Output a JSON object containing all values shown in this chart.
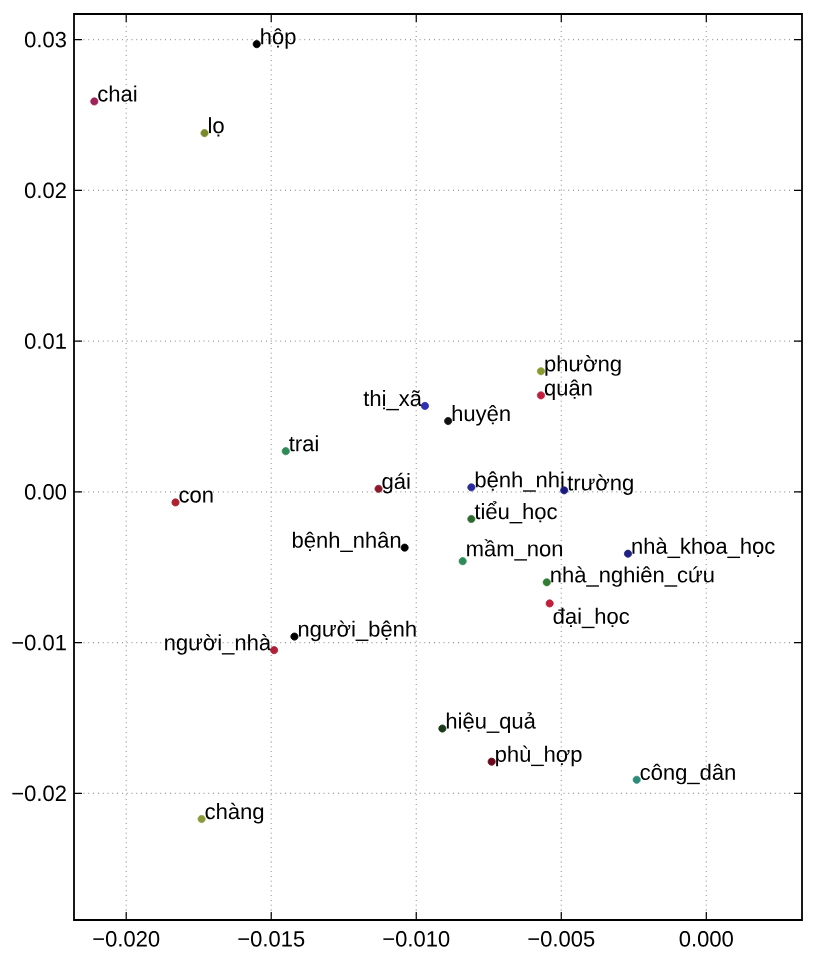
{
  "chart_data": {
    "type": "scatter",
    "marker": "circle",
    "grid": true,
    "x": [
      -0.0155,
      -0.0211,
      -0.0173,
      -0.0145,
      -0.0183,
      -0.0113,
      -0.0097,
      -0.0089,
      -0.0057,
      -0.0057,
      -0.0081,
      -0.0049,
      -0.0081,
      -0.0104,
      -0.0084,
      -0.0027,
      -0.0055,
      -0.0054,
      -0.0142,
      -0.0149,
      -0.0091,
      -0.0074,
      -0.0024,
      -0.0174
    ],
    "values": [
      0.0297,
      0.0259,
      0.0238,
      0.0027,
      -0.0007,
      0.0002,
      0.0057,
      0.0047,
      0.008,
      0.0064,
      0.0003,
      0.0001,
      -0.0018,
      -0.0037,
      -0.0046,
      -0.0041,
      -0.006,
      -0.0074,
      -0.0096,
      -0.0105,
      -0.0157,
      -0.0179,
      -0.0191,
      -0.0217
    ],
    "colors": [
      "#000000",
      "#a0205a",
      "#7a8a2a",
      "#2e8b57",
      "#b02030",
      "#8b1a2a",
      "#3030b0",
      "#101010",
      "#8a9a30",
      "#c02040",
      "#2a2a9a",
      "#1a1a80",
      "#2e6b2e",
      "#000000",
      "#2e8b57",
      "#202080",
      "#2e7d32",
      "#c0203a",
      "#000000",
      "#b0203a",
      "#1a3a1a",
      "#6a0a1a",
      "#2e8b7a",
      "#8a9a3a"
    ],
    "annotations": [
      {
        "text": "hộp",
        "x": -0.0155,
        "y": 0.0297
      },
      {
        "text": "chai",
        "x": -0.0211,
        "y": 0.0259
      },
      {
        "text": "lọ",
        "x": -0.0173,
        "y": 0.0238
      },
      {
        "text": "trai",
        "x": -0.0145,
        "y": 0.0027
      },
      {
        "text": "con",
        "x": -0.0183,
        "y": -0.0007
      },
      {
        "text": "gái",
        "x": -0.0113,
        "y": 0.0002
      },
      {
        "text": "thị_xã",
        "x": -0.0097,
        "y": 0.0057
      },
      {
        "text": "huyện",
        "x": -0.0089,
        "y": 0.0047
      },
      {
        "text": "phường",
        "x": -0.0057,
        "y": 0.008
      },
      {
        "text": "quận",
        "x": -0.0057,
        "y": 0.0064
      },
      {
        "text": "bệnh_nhi",
        "x": -0.0081,
        "y": 0.0003
      },
      {
        "text": "trường",
        "x": -0.0049,
        "y": 0.0001
      },
      {
        "text": "tiểu_học",
        "x": -0.0081,
        "y": -0.0018
      },
      {
        "text": "bệnh_nhân",
        "x": -0.0104,
        "y": -0.0037
      },
      {
        "text": "mầm_non",
        "x": -0.0084,
        "y": -0.0046
      },
      {
        "text": "nhà_khoa_học",
        "x": -0.0027,
        "y": -0.0041
      },
      {
        "text": "nhà_nghiên_cứu",
        "x": -0.0055,
        "y": -0.006
      },
      {
        "text": "đại_học",
        "x": -0.0054,
        "y": -0.0074
      },
      {
        "text": "người_bệnh",
        "x": -0.0142,
        "y": -0.0096
      },
      {
        "text": "người_nhà",
        "x": -0.0149,
        "y": -0.0105
      },
      {
        "text": "hiệu_quả",
        "x": -0.0091,
        "y": -0.0157
      },
      {
        "text": "phù_hợp",
        "x": -0.0074,
        "y": -0.0179
      },
      {
        "text": "công_dân",
        "x": -0.0024,
        "y": -0.0191
      },
      {
        "text": "chàng",
        "x": -0.0174,
        "y": -0.0217
      }
    ],
    "xlim": [
      -0.0218,
      0.0033
    ],
    "ylim": [
      -0.0284,
      0.0317
    ],
    "xticks": [
      {
        "value": -0.02,
        "label": "−0.020"
      },
      {
        "value": -0.015,
        "label": "−0.015"
      },
      {
        "value": -0.01,
        "label": "−0.010"
      },
      {
        "value": -0.005,
        "label": "−0.005"
      },
      {
        "value": 0,
        "label": "0.000"
      }
    ],
    "yticks": [
      {
        "value": -0.02,
        "label": "−0.02"
      },
      {
        "value": -0.01,
        "label": "−0.01"
      },
      {
        "value": 0,
        "label": "0.00"
      },
      {
        "value": 0.01,
        "label": "0.01"
      },
      {
        "value": 0.02,
        "label": "0.02"
      },
      {
        "value": 0.03,
        "label": "0.03"
      }
    ]
  }
}
